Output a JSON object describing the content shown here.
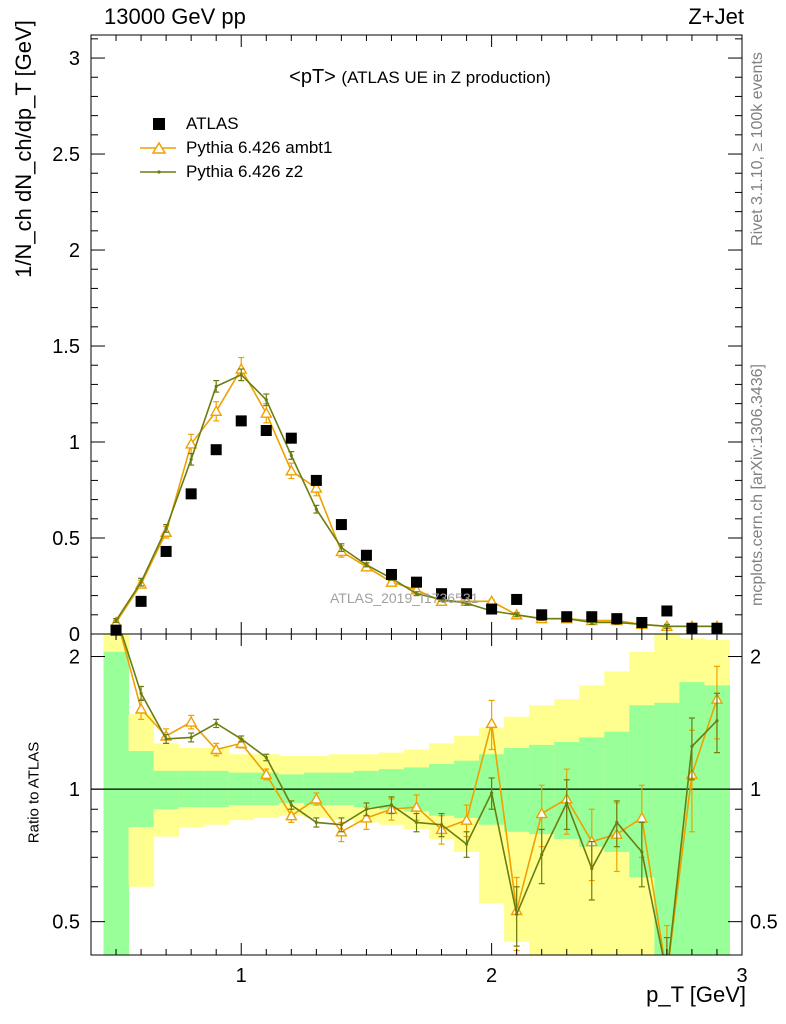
{
  "header": {
    "left": "13000 GeV pp",
    "right": "Z+Jet"
  },
  "title": {
    "main": "<pT>",
    "sub": "(ATLAS UE in Z production)"
  },
  "side_notes": {
    "rivet": "Rivet 3.1.10, ≥ 100k events",
    "mcplots": "mcplots.cern.ch [arXiv:1306.3436]"
  },
  "watermark": "ATLAS_2019_I1736531",
  "legend": [
    {
      "name": "ATLAS",
      "color": "#000000",
      "marker": "square"
    },
    {
      "name": "Pythia 6.426 ambt1",
      "color": "#f0a000",
      "marker": "open-triangle"
    },
    {
      "name": "Pythia 6.426 z2",
      "color": "#6b7d10",
      "marker": "dot"
    }
  ],
  "axes": {
    "main_ylabel": "1/N_ch dN_ch/dp_T [GeV]",
    "ratio_ylabel": "Ratio to ATLAS",
    "xlabel": "p_T [GeV]",
    "main_yticks": [
      "0",
      "0.5",
      "1",
      "1.5",
      "2",
      "2.5",
      "3"
    ],
    "ratio_yticks": [
      "0.5",
      "1",
      "2"
    ],
    "xticks": [
      "1",
      "2",
      "3"
    ]
  },
  "chart_data": [
    {
      "type": "scatter",
      "panel": "main",
      "xlim": [
        0.4,
        3.0
      ],
      "ylim": [
        0,
        3.12
      ],
      "x": [
        0.5,
        0.6,
        0.7,
        0.8,
        0.9,
        1.0,
        1.1,
        1.2,
        1.3,
        1.4,
        1.5,
        1.6,
        1.7,
        1.8,
        1.9,
        2.0,
        2.1,
        2.2,
        2.3,
        2.4,
        2.5,
        2.6,
        2.7,
        2.8,
        2.9
      ],
      "series": [
        {
          "name": "ATLAS",
          "values": [
            0.02,
            0.17,
            0.43,
            0.73,
            0.96,
            1.11,
            1.06,
            1.02,
            0.8,
            0.57,
            0.41,
            0.31,
            0.27,
            0.21,
            0.21,
            0.13,
            0.18,
            0.1,
            0.09,
            0.09,
            0.08,
            0.06,
            0.12,
            0.03,
            0.03
          ]
        },
        {
          "name": "Pythia 6.426 ambt1",
          "values": [
            0.06,
            0.26,
            0.53,
            0.99,
            1.16,
            1.38,
            1.15,
            0.85,
            0.76,
            0.43,
            0.35,
            0.27,
            0.23,
            0.17,
            0.17,
            0.17,
            0.1,
            0.08,
            0.08,
            0.07,
            0.07,
            0.05,
            0.04,
            0.04,
            0.04
          ],
          "errors": [
            0.01,
            0.02,
            0.03,
            0.05,
            0.05,
            0.06,
            0.05,
            0.04,
            0.04,
            0.03,
            0.02,
            0.02,
            0.02,
            0.01,
            0.01,
            0.01,
            0.01,
            0.01,
            0.01,
            0.01,
            0.01,
            0.01,
            0.01,
            0.01,
            0.01
          ]
        },
        {
          "name": "Pythia 6.426 z2",
          "values": [
            0.07,
            0.27,
            0.55,
            0.91,
            1.29,
            1.35,
            1.22,
            0.93,
            0.65,
            0.45,
            0.36,
            0.29,
            0.21,
            0.18,
            0.16,
            0.12,
            0.1,
            0.08,
            0.08,
            0.06,
            0.06,
            0.05,
            0.04,
            0.04,
            0.04
          ],
          "errors": [
            0.01,
            0.02,
            0.02,
            0.03,
            0.03,
            0.03,
            0.03,
            0.02,
            0.02,
            0.02,
            0.01,
            0.01,
            0.01,
            0.01,
            0.01,
            0.01,
            0.01,
            0.01,
            0.01,
            0.01,
            0.01,
            0.01,
            0.01,
            0.01,
            0.01
          ]
        }
      ]
    },
    {
      "type": "line",
      "panel": "ratio",
      "xlim": [
        0.4,
        3.0
      ],
      "ylim": [
        0.42,
        2.25
      ],
      "y_scale": "log",
      "reference_line": 1,
      "x": [
        0.5,
        0.6,
        0.7,
        0.8,
        0.9,
        1.0,
        1.1,
        1.2,
        1.3,
        1.4,
        1.5,
        1.6,
        1.7,
        1.8,
        1.9,
        2.0,
        2.1,
        2.2,
        2.3,
        2.4,
        2.5,
        2.6,
        2.7,
        2.8,
        2.9
      ],
      "bands": {
        "green_low": [
          0.35,
          0.82,
          0.9,
          0.91,
          0.91,
          0.92,
          0.92,
          0.93,
          0.92,
          0.92,
          0.91,
          0.9,
          0.89,
          0.87,
          0.86,
          0.83,
          0.8,
          0.79,
          0.77,
          0.74,
          0.72,
          0.63,
          0.35,
          0.35,
          0.35
        ],
        "green_high": [
          2.05,
          1.22,
          1.1,
          1.1,
          1.1,
          1.09,
          1.09,
          1.08,
          1.09,
          1.09,
          1.1,
          1.11,
          1.12,
          1.14,
          1.16,
          1.2,
          1.24,
          1.26,
          1.28,
          1.31,
          1.35,
          1.55,
          1.57,
          1.75,
          1.72
        ],
        "yellow_low": [
          0.35,
          0.6,
          0.78,
          0.82,
          0.83,
          0.85,
          0.86,
          0.87,
          0.86,
          0.85,
          0.84,
          0.83,
          0.81,
          0.77,
          0.72,
          0.55,
          0.45,
          0.42,
          0.35,
          0.35,
          0.35,
          0.35,
          0.35,
          0.35,
          0.35
        ],
        "yellow_high": [
          2.25,
          1.48,
          1.27,
          1.24,
          1.24,
          1.2,
          1.2,
          1.19,
          1.19,
          1.2,
          1.2,
          1.21,
          1.23,
          1.27,
          1.32,
          1.38,
          1.46,
          1.55,
          1.6,
          1.72,
          1.85,
          2.05,
          2.25,
          2.2,
          2.18
        ]
      },
      "series": [
        {
          "name": "Pythia 6.426 ambt1",
          "values": [
            3.0,
            1.52,
            1.32,
            1.42,
            1.23,
            1.27,
            1.08,
            0.87,
            0.95,
            0.8,
            0.86,
            0.9,
            0.91,
            0.81,
            0.85,
            1.41,
            0.53,
            0.88,
            0.95,
            0.76,
            0.79,
            0.86,
            0.37,
            1.08,
            1.6
          ],
          "errors": [
            0.1,
            0.08,
            0.05,
            0.05,
            0.04,
            0.03,
            0.03,
            0.03,
            0.03,
            0.04,
            0.05,
            0.05,
            0.06,
            0.06,
            0.07,
            0.18,
            0.1,
            0.14,
            0.16,
            0.14,
            0.14,
            0.16,
            0.12,
            0.28,
            0.3
          ]
        },
        {
          "name": "Pythia 6.426 z2",
          "values": [
            3.0,
            1.65,
            1.3,
            1.31,
            1.41,
            1.3,
            1.18,
            0.92,
            0.84,
            0.83,
            0.9,
            0.92,
            0.84,
            0.83,
            0.75,
            0.98,
            0.52,
            0.71,
            0.93,
            0.66,
            0.84,
            0.72,
            0.36,
            1.25,
            1.43
          ],
          "errors": [
            0.1,
            0.06,
            0.03,
            0.03,
            0.03,
            0.02,
            0.02,
            0.02,
            0.02,
            0.03,
            0.03,
            0.04,
            0.04,
            0.05,
            0.05,
            0.08,
            0.08,
            0.1,
            0.12,
            0.1,
            0.1,
            0.12,
            0.1,
            0.2,
            0.22
          ]
        }
      ]
    }
  ]
}
